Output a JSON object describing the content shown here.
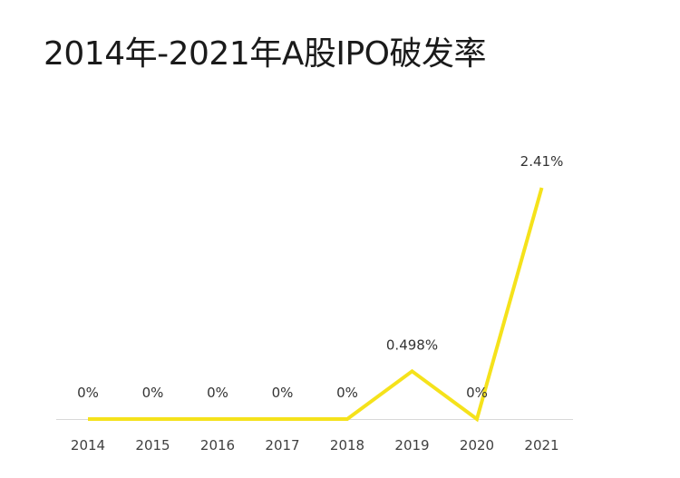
{
  "chart_data": {
    "type": "line",
    "title": "2014年-2021年A股IPO破发率",
    "xlabel": "",
    "ylabel": "",
    "categories": [
      "2014",
      "2015",
      "2016",
      "2017",
      "2018",
      "2019",
      "2020",
      "2021"
    ],
    "series": [
      {
        "values": [
          0,
          0,
          0,
          0,
          0,
          0.498,
          0,
          2.41
        ],
        "labels": [
          "0%",
          "0%",
          "0%",
          "0%",
          "0%",
          "0.498%",
          "0%",
          "2.41%"
        ]
      }
    ],
    "ylim": [
      0,
      2.41
    ],
    "grid": false,
    "legend": "none",
    "line_color": "#F5E21B",
    "axis_color": "#D9D9D9"
  }
}
